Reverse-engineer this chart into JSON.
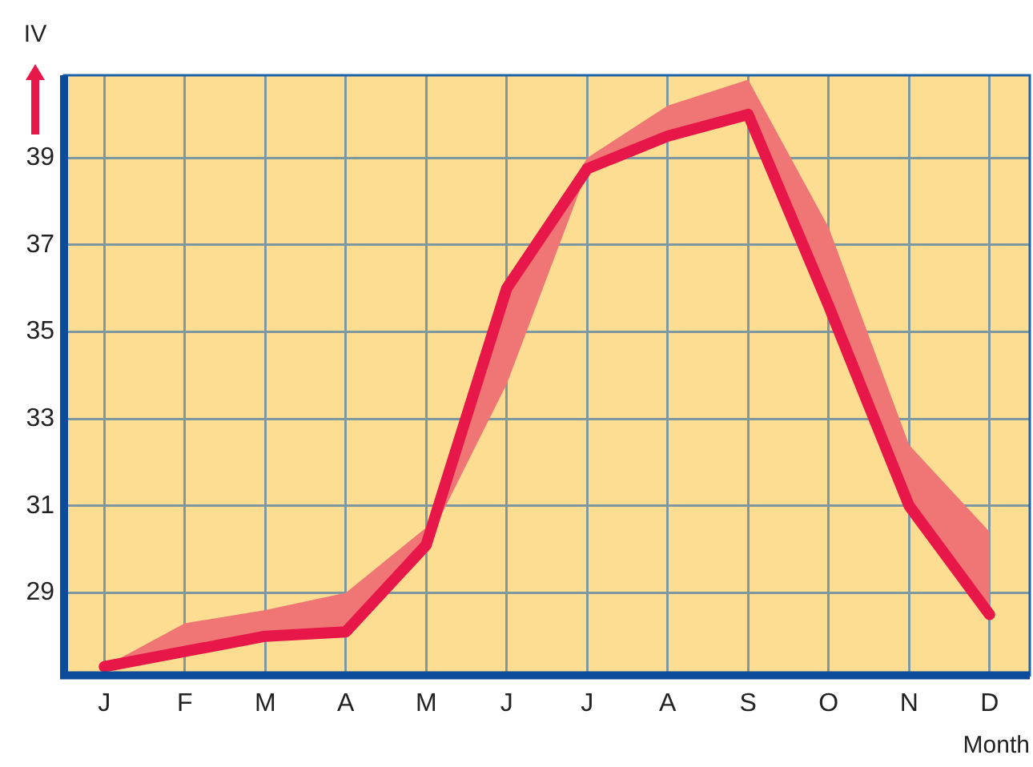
{
  "chart_data": {
    "type": "line",
    "ylabel": "IV",
    "xlabel": "Month",
    "categories": [
      "J",
      "F",
      "M",
      "A",
      "M",
      "J",
      "J",
      "A",
      "S",
      "O",
      "N",
      "D"
    ],
    "series": [
      {
        "color": "#e8174a",
        "values": [
          27.3,
          27.65,
          28.0,
          28.1,
          30.1,
          36.0,
          38.75,
          39.5,
          40.0,
          35.6,
          31.0,
          28.5
        ],
        "lower": [
          27.3,
          27.65,
          28.0,
          28.1,
          30.1,
          33.8,
          38.7,
          39.5,
          40.0,
          35.6,
          31.0,
          28.5
        ],
        "upper": [
          27.3,
          28.3,
          28.6,
          29.0,
          30.5,
          36.0,
          39.0,
          40.2,
          40.8,
          37.4,
          32.4,
          30.4
        ]
      }
    ],
    "ylim": [
      27.1,
      40.9
    ],
    "yticks": [
      29,
      31,
      33,
      35,
      37,
      39
    ],
    "grid": true,
    "legend": false,
    "marker": "none",
    "line_style": "solid"
  }
}
